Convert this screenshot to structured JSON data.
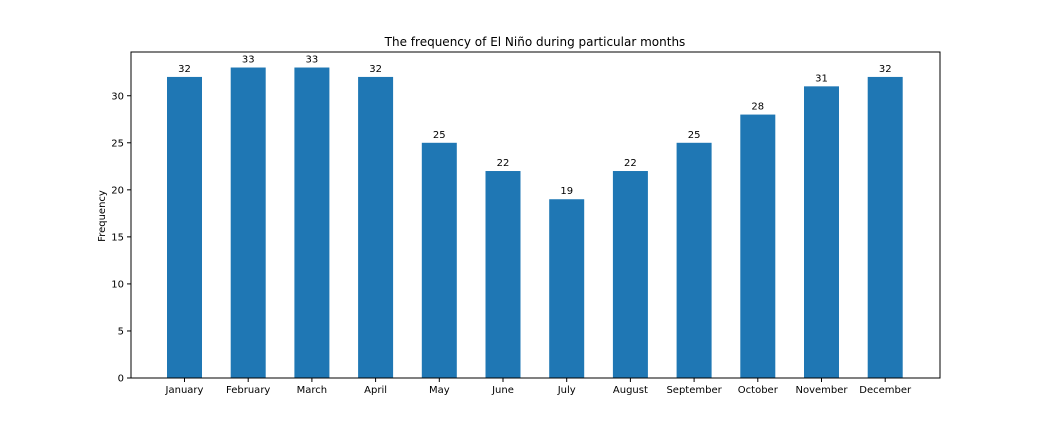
{
  "chart_data": {
    "type": "bar",
    "title": "The frequency of El Niño during particular months",
    "xlabel": "",
    "ylabel": "Frequency",
    "categories": [
      "January",
      "February",
      "March",
      "April",
      "May",
      "June",
      "July",
      "August",
      "September",
      "October",
      "November",
      "December"
    ],
    "values": [
      32,
      33,
      33,
      32,
      25,
      22,
      19,
      22,
      25,
      28,
      31,
      32
    ],
    "ylim": [
      0,
      34.65
    ],
    "yticks": [
      0,
      5,
      10,
      15,
      20,
      25,
      30
    ],
    "bar_color": "#1f77b4",
    "grid": false,
    "legend": "none"
  }
}
